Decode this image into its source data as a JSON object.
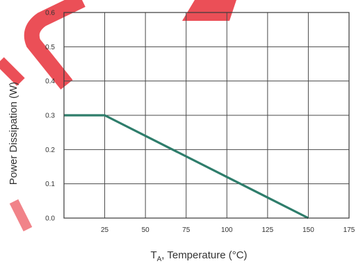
{
  "chart_data": {
    "type": "line",
    "xlabel_main": "T",
    "xlabel_sub": "A",
    "xlabel_rest": ", Temperature (°C)",
    "ylabel": "Power Dissipation (W)",
    "xlim": [
      0,
      175
    ],
    "ylim": [
      0,
      0.6
    ],
    "x_ticks": [
      25,
      50,
      75,
      100,
      125,
      150,
      175
    ],
    "x_tick_labels": [
      "25",
      "50",
      "75",
      "100",
      "125",
      "150",
      "175"
    ],
    "y_ticks": [
      0,
      0.1,
      0.2,
      0.3,
      0.4,
      0.5,
      0.6
    ],
    "y_tick_labels": [
      "0.0",
      "0.1",
      "0.2",
      "0.3",
      "0.4",
      "0.5",
      "0.6"
    ],
    "grid": true,
    "series": [
      {
        "x": [
          0,
          25,
          150
        ],
        "y": [
          0.3,
          0.3,
          0.0
        ],
        "color": "#2e7d6b"
      }
    ],
    "watermark_color": "#e8303a"
  }
}
